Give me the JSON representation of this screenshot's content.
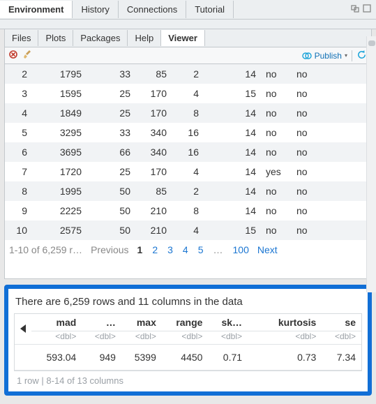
{
  "outer_tabs": [
    "Environment",
    "History",
    "Connections",
    "Tutorial"
  ],
  "outer_active": 0,
  "inner_tabs": [
    "Files",
    "Plots",
    "Packages",
    "Help",
    "Viewer"
  ],
  "inner_active": 4,
  "publish_label": "Publish",
  "table": {
    "row_bg_odd": "#f1f3f5",
    "row_bg_even": "#ffffff",
    "rows": [
      {
        "n": "2",
        "c1": "1795",
        "c2": "33",
        "c3": "85",
        "c4": "2",
        "c5": "14",
        "c6": "no",
        "c7": "no"
      },
      {
        "n": "3",
        "c1": "1595",
        "c2": "25",
        "c3": "170",
        "c4": "4",
        "c5": "15",
        "c6": "no",
        "c7": "no"
      },
      {
        "n": "4",
        "c1": "1849",
        "c2": "25",
        "c3": "170",
        "c4": "8",
        "c5": "14",
        "c6": "no",
        "c7": "no"
      },
      {
        "n": "5",
        "c1": "3295",
        "c2": "33",
        "c3": "340",
        "c4": "16",
        "c5": "14",
        "c6": "no",
        "c7": "no"
      },
      {
        "n": "6",
        "c1": "3695",
        "c2": "66",
        "c3": "340",
        "c4": "16",
        "c5": "14",
        "c6": "no",
        "c7": "no"
      },
      {
        "n": "7",
        "c1": "1720",
        "c2": "25",
        "c3": "170",
        "c4": "4",
        "c5": "14",
        "c6": "yes",
        "c7": "no"
      },
      {
        "n": "8",
        "c1": "1995",
        "c2": "50",
        "c3": "85",
        "c4": "2",
        "c5": "14",
        "c6": "no",
        "c7": "no"
      },
      {
        "n": "9",
        "c1": "2225",
        "c2": "50",
        "c3": "210",
        "c4": "8",
        "c5": "14",
        "c6": "no",
        "c7": "no"
      },
      {
        "n": "10",
        "c1": "2575",
        "c2": "50",
        "c3": "210",
        "c4": "4",
        "c5": "15",
        "c6": "no",
        "c7": "no"
      }
    ]
  },
  "pager": {
    "info": "1-10 of 6,259 r…",
    "prev": "Previous",
    "pages": [
      "1",
      "2",
      "3",
      "4",
      "5"
    ],
    "ellipsis": "…",
    "last": "100",
    "next": "Next",
    "current": "1"
  },
  "highlight": {
    "title": "There are 6,259 rows and 11 columns in the data",
    "cols": [
      "mad",
      "…",
      "max",
      "range",
      "sk…",
      "",
      "kurtosis",
      "se"
    ],
    "types": [
      "<dbl>",
      "<dbl>",
      "<dbl>",
      "<dbl>",
      "<dbl>",
      "",
      "<dbl>",
      "<dbl>"
    ],
    "row": [
      "593.04",
      "949",
      "5399",
      "4450",
      "0.71",
      "",
      "0.73",
      "7.34"
    ],
    "footer": "1 row | 8-14 of 13 columns"
  },
  "colors": {
    "accent": "#116fd6",
    "link": "#1b76d2",
    "muted": "#9aa0a6",
    "border": "#c3c8cc"
  }
}
